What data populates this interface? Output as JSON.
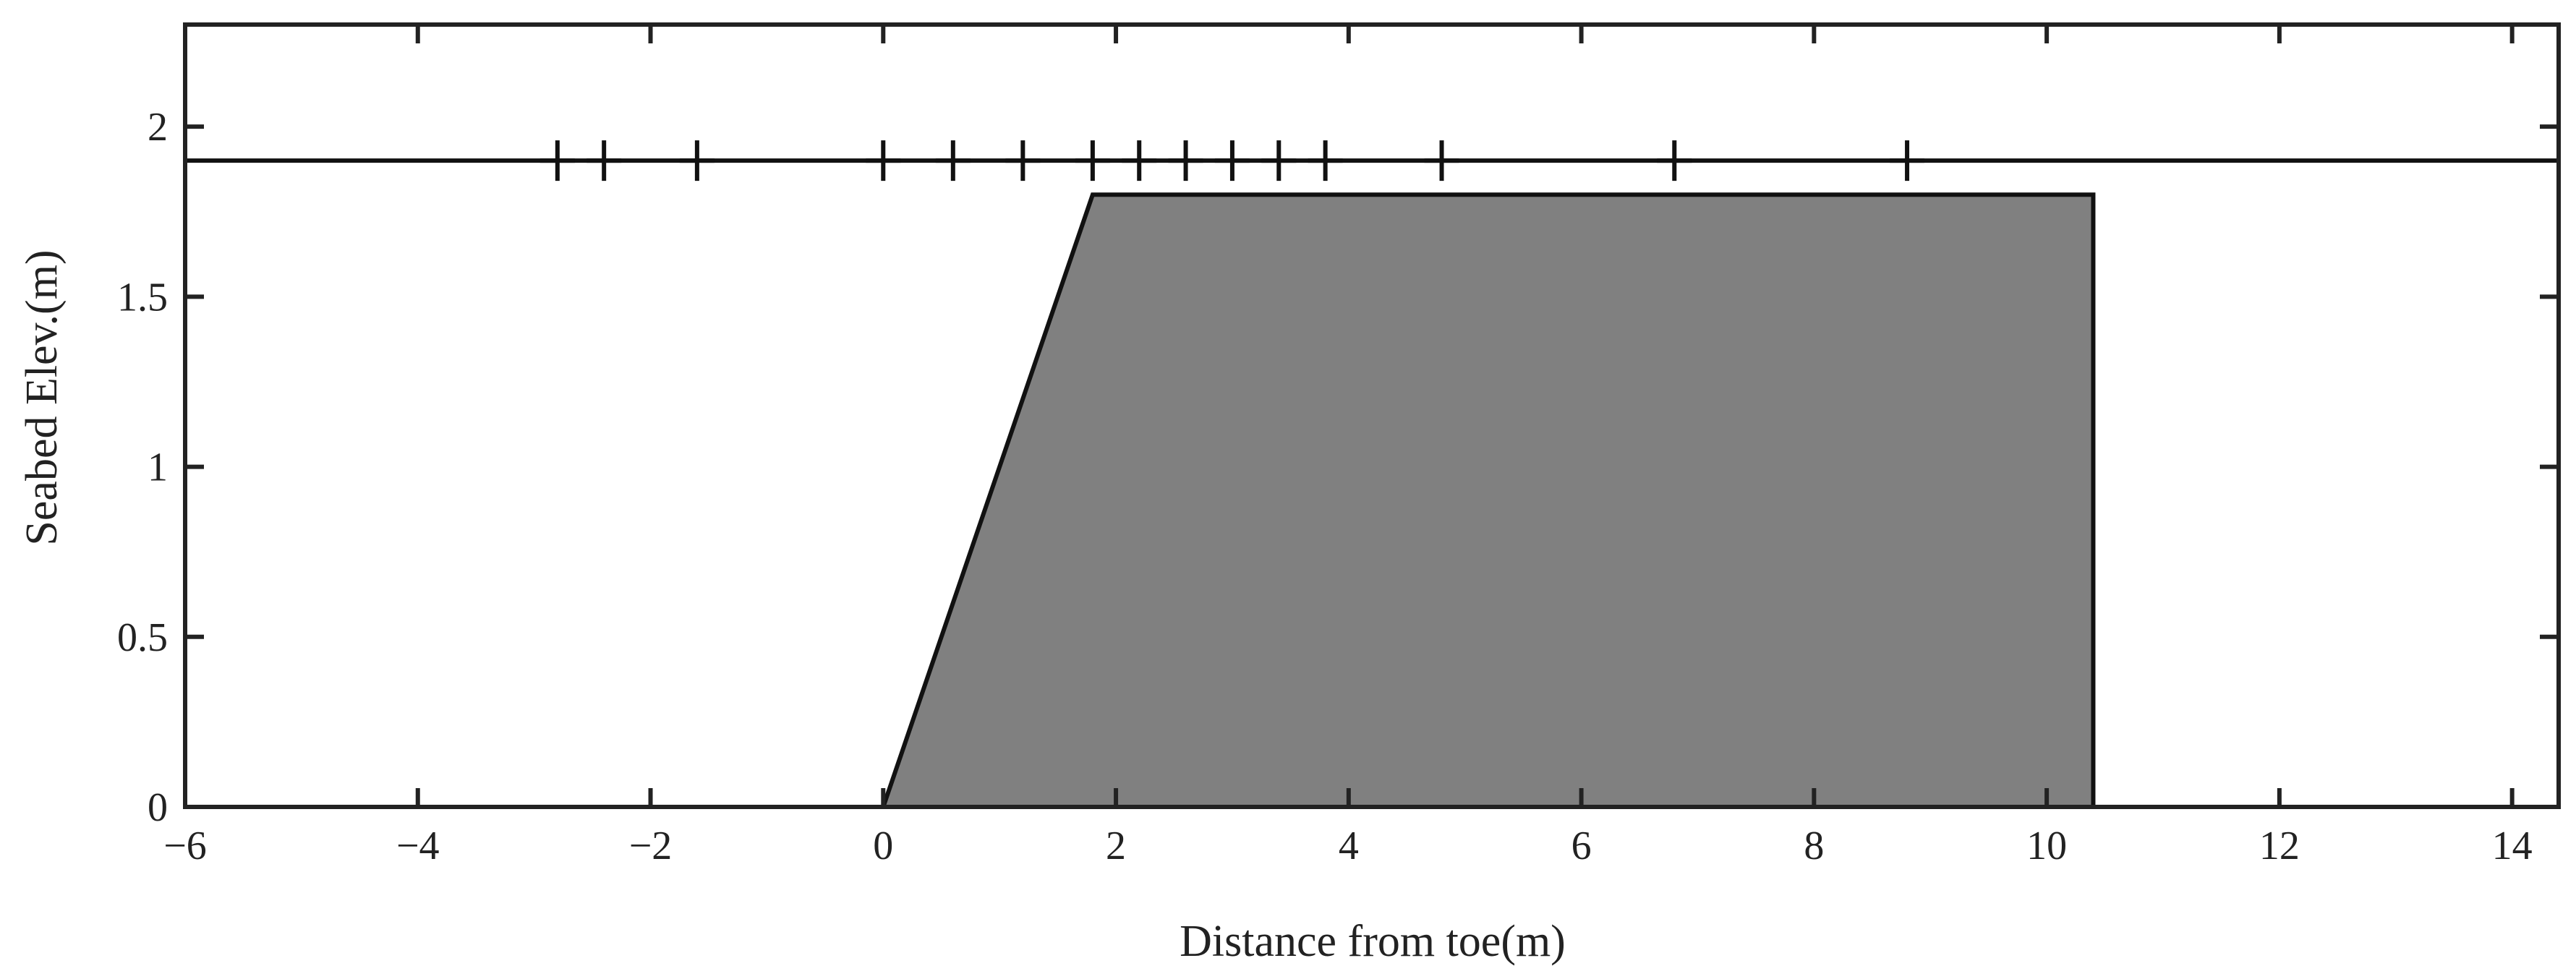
{
  "chart_data": {
    "type": "area",
    "xlabel": "Distance from toe(m)",
    "ylabel": "Seabed Elev.(m)",
    "xlim": [
      -6,
      14.4
    ],
    "ylim": [
      0,
      2.3
    ],
    "xticks": [
      -6,
      -4,
      -2,
      0,
      2,
      4,
      6,
      8,
      10,
      12,
      14
    ],
    "xtick_labels": [
      "−6",
      "−4",
      "−2",
      "0",
      "2",
      "4",
      "6",
      "8",
      "10",
      "12",
      "14"
    ],
    "yticks": [
      0,
      0.5,
      1,
      1.5,
      2
    ],
    "ytick_labels": [
      "0",
      "0.5",
      "1",
      "1.5",
      "2"
    ],
    "grid": false,
    "series": [
      {
        "kind": "polygon",
        "x": [
          0,
          1.8,
          10.4,
          10.4,
          0
        ],
        "y": [
          0,
          1.8,
          1.8,
          0,
          0
        ],
        "fill": "#808080",
        "stroke": "#111111"
      },
      {
        "kind": "line",
        "x": [
          -6,
          14.4
        ],
        "y": [
          1.9,
          1.9
        ],
        "stroke": "#111111"
      },
      {
        "kind": "markers",
        "marker": "+",
        "x": [
          -2.8,
          -2.4,
          -1.6,
          0,
          0.6,
          1.2,
          1.8,
          2.2,
          2.6,
          3.0,
          3.4,
          3.8,
          4.8,
          6.8,
          8.8
        ],
        "y": [
          1.9,
          1.9,
          1.9,
          1.9,
          1.9,
          1.9,
          1.9,
          1.9,
          1.9,
          1.9,
          1.9,
          1.9,
          1.9,
          1.9,
          1.9
        ]
      }
    ]
  }
}
